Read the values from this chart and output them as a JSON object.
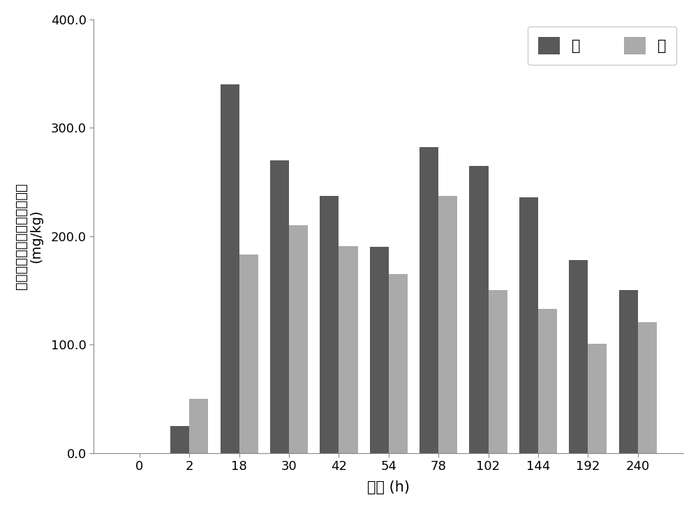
{
  "categories": [
    "0",
    "2",
    "18",
    "30",
    "42",
    "54",
    "78",
    "102",
    "144",
    "192",
    "240"
  ],
  "copper_values": [
    0,
    25,
    340,
    270,
    237,
    190,
    282,
    265,
    236,
    178,
    150
  ],
  "cadmium_values": [
    0,
    50,
    183,
    210,
    191,
    165,
    237,
    150,
    133,
    101,
    121
  ],
  "copper_color": "#595959",
  "cadmium_color": "#aaaaaa",
  "xlabel": "时间 (h)",
  "ylabel_line1": "铜和镖在周丛生物中的富集量",
  "ylabel_line2": "(mg/kg)",
  "ylim": [
    0,
    400
  ],
  "yticks": [
    0.0,
    100.0,
    200.0,
    300.0,
    400.0
  ],
  "legend_copper": "铜",
  "legend_cadmium": "镖",
  "bar_width": 0.38,
  "xlabel_fontsize": 15,
  "ylabel_fontsize": 14,
  "tick_fontsize": 13,
  "legend_fontsize": 15
}
